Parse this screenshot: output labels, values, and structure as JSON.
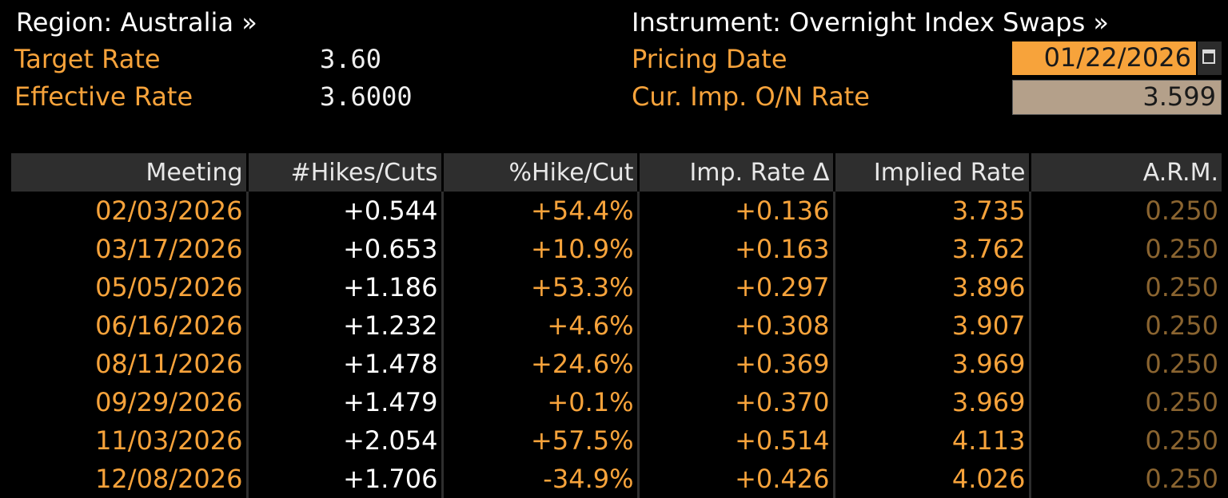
{
  "header": {
    "region_link": "Region: Australia »",
    "instrument_link": "Instrument: Overnight Index Swaps »",
    "target_rate_label": "Target Rate",
    "target_rate_value": "3.60",
    "effective_rate_label": "Effective Rate",
    "effective_rate_value": "3.6000",
    "pricing_date_label": "Pricing Date",
    "pricing_date_value": "01/22/2026",
    "on_rate_label": "Cur. Imp. O/N Rate",
    "on_rate_value": "3.599"
  },
  "colors": {
    "accent": "#f7a33b",
    "background": "#000000",
    "header_bg": "#2e2e2e",
    "arm_dim": "#8a6430"
  },
  "icons": {
    "date_picker": "calendar-icon"
  },
  "table": {
    "columns": [
      "Meeting",
      "#Hikes/Cuts",
      "%Hike/Cut",
      "Imp. Rate Δ",
      "Implied Rate",
      "A.R.M."
    ],
    "rows": [
      [
        "02/03/2026",
        "+0.544",
        "+54.4%",
        "+0.136",
        "3.735",
        "0.250"
      ],
      [
        "03/17/2026",
        "+0.653",
        "+10.9%",
        "+0.163",
        "3.762",
        "0.250"
      ],
      [
        "05/05/2026",
        "+1.186",
        "+53.3%",
        "+0.297",
        "3.896",
        "0.250"
      ],
      [
        "06/16/2026",
        "+1.232",
        "+4.6%",
        "+0.308",
        "3.907",
        "0.250"
      ],
      [
        "08/11/2026",
        "+1.478",
        "+24.6%",
        "+0.369",
        "3.969",
        "0.250"
      ],
      [
        "09/29/2026",
        "+1.479",
        "+0.1%",
        "+0.370",
        "3.969",
        "0.250"
      ],
      [
        "11/03/2026",
        "+2.054",
        "+57.5%",
        "+0.514",
        "4.113",
        "0.250"
      ],
      [
        "12/08/2026",
        "+1.706",
        "-34.9%",
        "+0.426",
        "4.026",
        "0.250"
      ]
    ]
  }
}
